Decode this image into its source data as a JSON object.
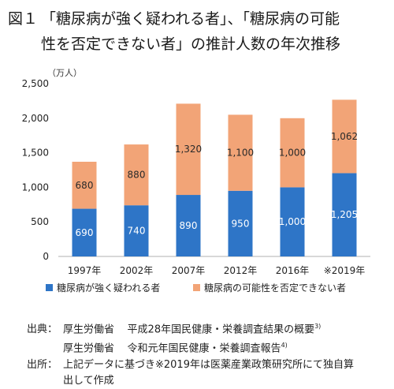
{
  "figure": {
    "number": "図１",
    "title_line1": "「糖尿病が強く疑われる者」、「糖尿病の可能",
    "title_line2": "性を否定できない者」の推計人数の年次推移"
  },
  "colors": {
    "strongly_suspected": "#2e75c7",
    "cannot_be_ruled_out": "#f2a477"
  },
  "chart_data": {
    "type": "bar",
    "stacked": true,
    "unit_label": "（万人）",
    "categories": [
      "1997年",
      "2002年",
      "2007年",
      "2012年",
      "2016年",
      "※2019年"
    ],
    "series": [
      {
        "name": "糖尿病が強く疑われる者",
        "values": [
          690,
          740,
          890,
          950,
          1000,
          1205
        ],
        "labels": [
          "690",
          "740",
          "890",
          "950",
          "1,000",
          "1,205"
        ]
      },
      {
        "name": "糖尿病の可能性を否定できない者",
        "values": [
          680,
          880,
          1320,
          1100,
          1000,
          1062
        ],
        "labels": [
          "680",
          "880",
          "1,320",
          "1,100",
          "1,000",
          "1,062"
        ]
      }
    ],
    "ylim": [
      0,
      2500
    ],
    "yticks": [
      0,
      500,
      1000,
      1500,
      2000,
      2500
    ],
    "ytick_labels": [
      "0",
      "500",
      "1,000",
      "1,500",
      "2,000",
      "2,500"
    ],
    "grid": false,
    "legend_position": "bottom"
  },
  "sources": {
    "label1": "出典：",
    "src1_org": "厚生労働省",
    "src1_title": "平成28年国民健康・栄養調査結果の概要",
    "src1_ref": "3)",
    "src2_org": "厚生労働省",
    "src2_title": "令和元年国民健康・栄養調査報告",
    "src2_ref": "4)",
    "label2": "出所：",
    "note_line1": "上記データに基づき※2019年は医薬産業政策研究所にて独自算",
    "note_line2": "出して作成"
  }
}
